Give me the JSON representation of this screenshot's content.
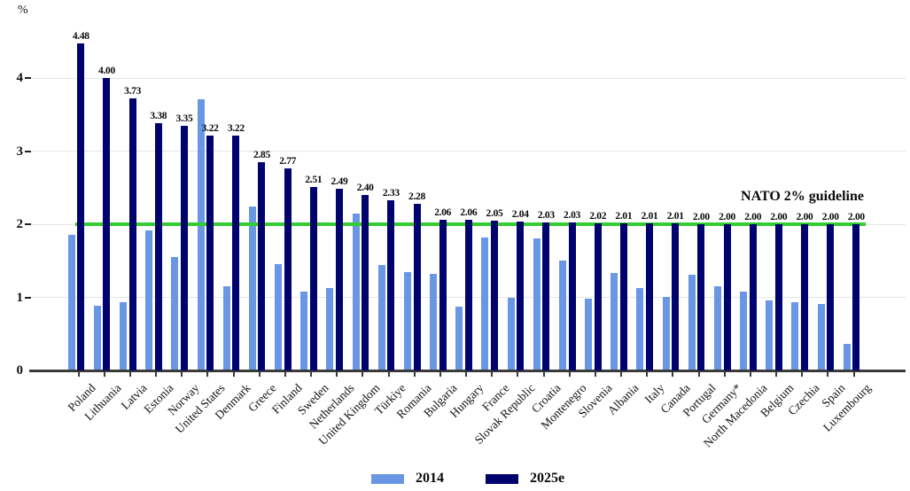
{
  "chart_data": {
    "type": "bar",
    "title": "",
    "ylabel": "%",
    "xlabel": "",
    "categories": [
      "Poland",
      "Lithuania",
      "Latvia",
      "Estonia",
      "Norway",
      "United States",
      "Denmark",
      "Greece",
      "Finland",
      "Sweden",
      "Netherlands",
      "United Kingdom",
      "Türkiye",
      "Romania",
      "Bulgaria",
      "Hungary",
      "France",
      "Slovak Republic",
      "Croatia",
      "Montenegro",
      "Slovenia",
      "Albania",
      "Italy",
      "Canada",
      "Portugal",
      "Germany*",
      "North Macedonia",
      "Belgium",
      "Czechia",
      "Spain",
      "Luxembourg"
    ],
    "series": [
      {
        "name": "2014",
        "color": "#6997E4",
        "values": [
          1.86,
          0.88,
          0.94,
          1.92,
          1.55,
          3.71,
          1.15,
          2.24,
          1.46,
          1.08,
          1.13,
          2.15,
          1.45,
          1.35,
          1.32,
          0.87,
          1.82,
          0.99,
          1.81,
          1.5,
          0.98,
          1.34,
          1.13,
          1.01,
          1.31,
          1.15,
          1.08,
          0.96,
          0.94,
          0.91,
          0.36
        ]
      },
      {
        "name": "2025e",
        "color": "#00026E",
        "values": [
          4.48,
          4.0,
          3.73,
          3.38,
          3.35,
          3.22,
          3.22,
          2.85,
          2.77,
          2.51,
          2.49,
          2.4,
          2.33,
          2.28,
          2.06,
          2.06,
          2.05,
          2.04,
          2.03,
          2.03,
          2.02,
          2.01,
          2.01,
          2.01,
          2.0,
          2.0,
          2.0,
          2.0,
          2.0,
          2.0,
          2.0
        ],
        "data_labels": true
      }
    ],
    "guideline": {
      "label": "NATO 2% guideline",
      "value": 2.0,
      "color": "#33CC33"
    },
    "y_axis": {
      "min": 0,
      "max": 4.8,
      "ticks": [
        0,
        1,
        2,
        3,
        4
      ]
    },
    "grid": true,
    "legend_position": "bottom",
    "colors": {
      "gridline": "#E4E4E4",
      "axis": "#3A3A3A",
      "text": "#111111"
    }
  }
}
